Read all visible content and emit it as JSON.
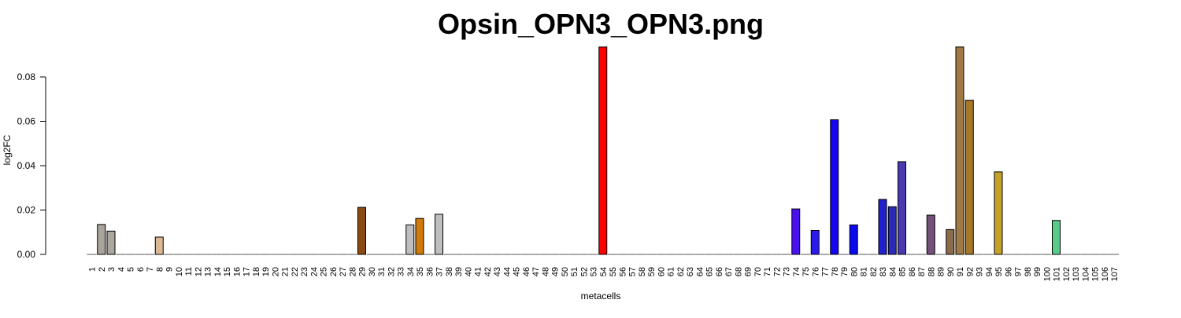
{
  "chart_data": {
    "type": "bar",
    "title": "Opsin_OPN3_OPN3.png",
    "xlabel": "metacells",
    "ylabel": "log2FC",
    "ylim": [
      0,
      0.093
    ],
    "yticks": [
      "0.00",
      "0.02",
      "0.04",
      "0.06",
      "0.08"
    ],
    "grid": false,
    "categories": [
      "1",
      "2",
      "3",
      "4",
      "5",
      "6",
      "7",
      "8",
      "9",
      "10",
      "11",
      "12",
      "13",
      "14",
      "15",
      "16",
      "17",
      "18",
      "19",
      "20",
      "21",
      "22",
      "23",
      "24",
      "25",
      "26",
      "27",
      "28",
      "29",
      "30",
      "31",
      "32",
      "33",
      "34",
      "35",
      "36",
      "37",
      "38",
      "39",
      "40",
      "41",
      "42",
      "43",
      "44",
      "45",
      "46",
      "47",
      "48",
      "49",
      "50",
      "51",
      "52",
      "53",
      "54",
      "55",
      "56",
      "57",
      "58",
      "59",
      "60",
      "61",
      "62",
      "63",
      "64",
      "65",
      "66",
      "67",
      "68",
      "69",
      "70",
      "71",
      "72",
      "73",
      "74",
      "75",
      "76",
      "77",
      "78",
      "79",
      "80",
      "81",
      "82",
      "83",
      "84",
      "85",
      "86",
      "87",
      "88",
      "89",
      "90",
      "91",
      "92",
      "93",
      "94",
      "95",
      "96",
      "97",
      "98",
      "99",
      "100",
      "101",
      "102",
      "103",
      "104",
      "105",
      "106",
      "107"
    ],
    "values": [
      0,
      0.0135,
      0.0105,
      0,
      0,
      0,
      0,
      0.0078,
      0,
      0,
      0,
      0,
      0,
      0,
      0,
      0,
      0,
      0,
      0,
      0,
      0,
      0,
      0,
      0,
      0,
      0,
      0,
      0,
      0.0212,
      0,
      0,
      0,
      0,
      0.0133,
      0.0162,
      0,
      0.0181,
      0,
      0,
      0,
      0,
      0,
      0,
      0,
      0,
      0,
      0,
      0,
      0,
      0,
      0,
      0,
      0,
      0.0935,
      0,
      0,
      0,
      0,
      0,
      0,
      0,
      0,
      0,
      0,
      0,
      0,
      0,
      0,
      0,
      0,
      0,
      0,
      0,
      0.0205,
      0,
      0.0108,
      0,
      0.0607,
      0,
      0.0133,
      0,
      0,
      0.0248,
      0.0215,
      0.0418,
      0,
      0,
      0.0177,
      0,
      0.0112,
      0.0935,
      0.0695,
      0,
      0,
      0.0372,
      0,
      0,
      0,
      0,
      0,
      0.0153,
      0,
      0,
      0,
      0,
      0,
      0
    ],
    "colors": {
      "2": "#a8a49c",
      "3": "#aba79f",
      "8": "#d9b996",
      "29": "#8c4a13",
      "35": "#d17a0a",
      "36": "#d5810e",
      "38": "#e08b0e",
      "54": "#ff0000",
      "74": "#4a10ee",
      "76": "#2a1aee",
      "78": "#1505f0",
      "80": "#0a0af0",
      "83": "#2020cc",
      "84": "#2a2ab8",
      "85": "#4a3ab0",
      "88": "#735178",
      "90": "#8a6b4a",
      "91": "#a07a45",
      "92": "#a8782a",
      "95": "#c4a22a",
      "101": "#5acb8a"
    },
    "default_color": "#bebebe"
  }
}
